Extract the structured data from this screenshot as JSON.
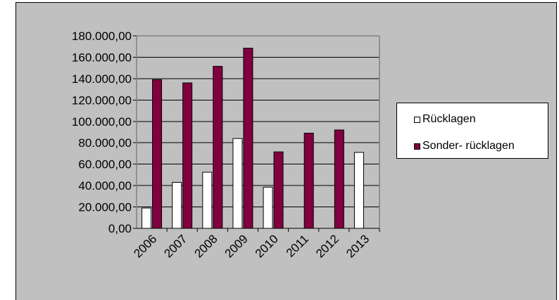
{
  "colors": {
    "plot_area_background": "#c0c0c0",
    "grid_line": "#000000",
    "series_1_fill": "#ffffff",
    "series_2_fill": "#800040"
  },
  "chart_data": {
    "type": "bar",
    "categories": [
      "2006",
      "2007",
      "2008",
      "2009",
      "2010",
      "2011",
      "2012",
      "2013"
    ],
    "series": [
      {
        "name": "Rücklagen",
        "values": [
          19000,
          43000,
          52500,
          84000,
          38500,
          0,
          0,
          71000
        ]
      },
      {
        "name": "Sonder- rücklagen",
        "values": [
          139000,
          136000,
          151500,
          168500,
          71500,
          89000,
          92000,
          0
        ]
      }
    ],
    "y_tick_labels": [
      "0,00",
      "20.000,00",
      "40.000,00",
      "60.000,00",
      "80.000,00",
      "100.000,00",
      "120.000,00",
      "140.000,00",
      "160.000,00",
      "180.000,00"
    ],
    "ylim": [
      0,
      180000
    ],
    "grid": true,
    "legend_position": "right"
  }
}
